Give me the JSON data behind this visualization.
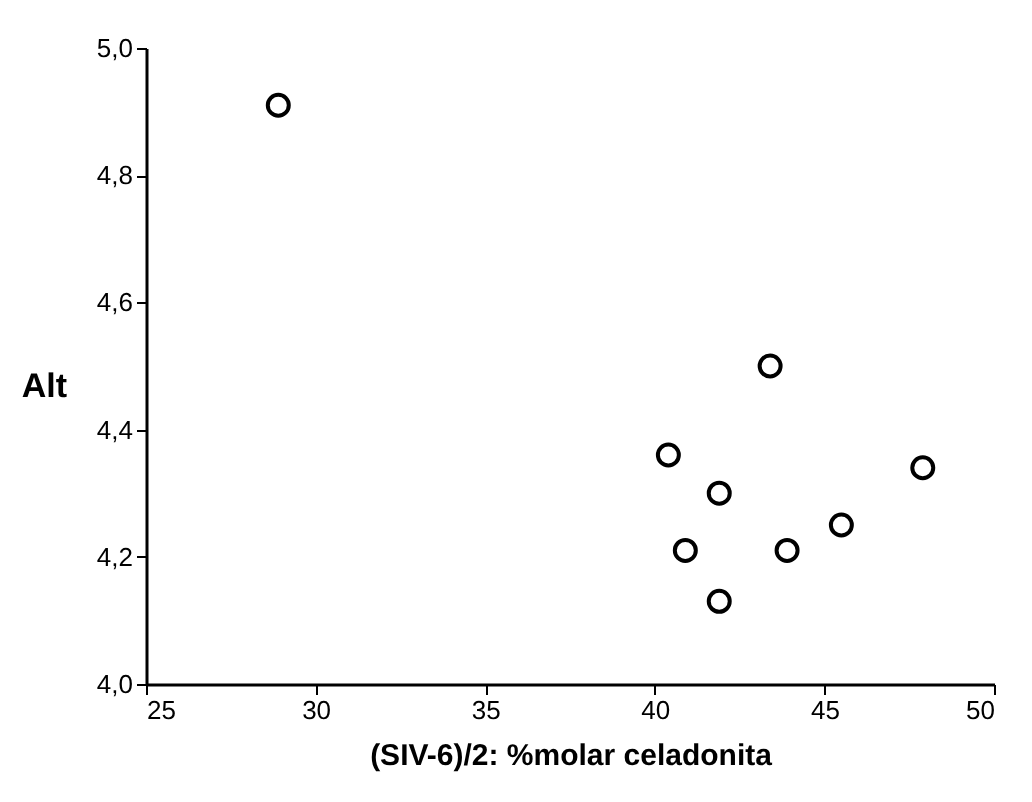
{
  "chart_data": {
    "type": "scatter",
    "xlabel": "(SIV-6)/2: %molar celadonita",
    "ylabel": "Alt",
    "x": [
      28.9,
      43.4,
      40.4,
      41.9,
      40.9,
      41.9,
      43.9,
      45.5,
      47.9
    ],
    "series": [
      {
        "color": "#000000",
        "values": [
          4.91,
          4.5,
          4.36,
          4.3,
          4.21,
          4.13,
          4.21,
          4.25,
          4.34
        ]
      }
    ],
    "xlim": [
      25,
      50
    ],
    "xticks": [
      25,
      30,
      35,
      40,
      45,
      50
    ],
    "ylim": [
      4.0,
      5.0
    ],
    "yticks": [
      {
        "value": 4.0,
        "label": "4,0"
      },
      {
        "value": 4.2,
        "label": "4,2"
      },
      {
        "value": 4.4,
        "label": "4,4"
      },
      {
        "value": 4.6,
        "label": "4,6"
      },
      {
        "value": 4.8,
        "label": "4,8"
      },
      {
        "value": 5.0,
        "label": "5,0"
      }
    ],
    "grid": false,
    "marker": "circle"
  }
}
